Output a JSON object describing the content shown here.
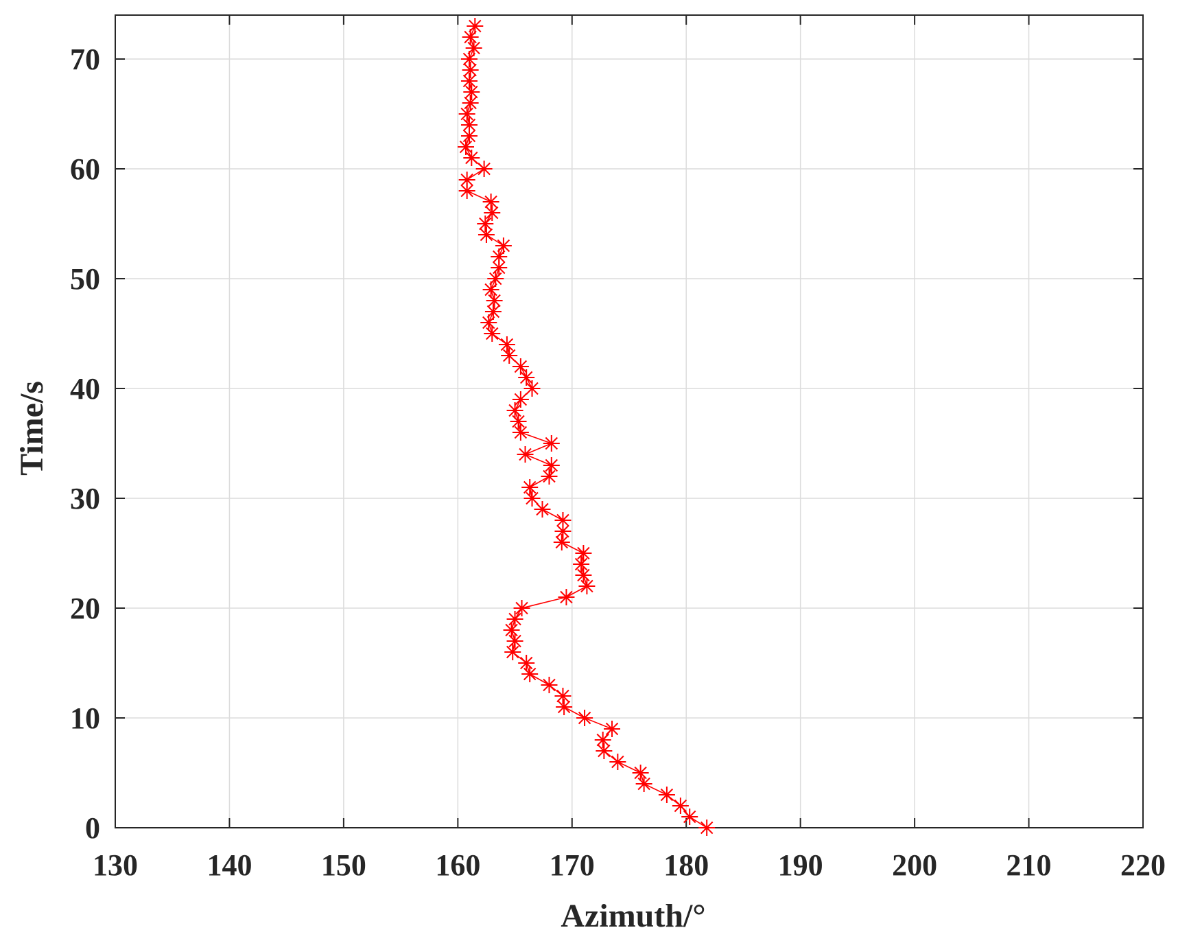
{
  "chart_data": {
    "type": "line",
    "title": "",
    "xlabel": "Azimuth/°",
    "ylabel": "Time/s",
    "xlim": [
      130,
      220
    ],
    "ylim": [
      0,
      74
    ],
    "xticks": [
      130,
      140,
      150,
      160,
      170,
      180,
      190,
      200,
      210,
      220
    ],
    "yticks": [
      0,
      10,
      20,
      30,
      40,
      50,
      60,
      70
    ],
    "x_tick_labels": [
      "130",
      "140",
      "150",
      "160",
      "170",
      "180",
      "190",
      "200",
      "210",
      "220"
    ],
    "y_tick_labels": [
      "0",
      "10",
      "20",
      "30",
      "40",
      "50",
      "60",
      "70"
    ],
    "grid": true,
    "legend": "none",
    "series": [
      {
        "color": "#ff0000",
        "marker": "asterisk",
        "x": [
          181.8,
          180.3,
          179.5,
          178.3,
          176.3,
          176,
          174,
          172.8,
          172.7,
          173.5,
          171.1,
          169.3,
          169.2,
          168,
          166.3,
          166,
          164.8,
          165,
          164.7,
          165,
          165.6,
          169.5,
          171.3,
          171,
          170.8,
          171,
          169.1,
          169.2,
          169.2,
          167.4,
          166.5,
          166.3,
          168,
          168.2,
          165.9,
          168.2,
          165.5,
          165.3,
          165,
          165.5,
          166.5,
          166,
          165.5,
          164.5,
          164.3,
          163,
          162.7,
          163.1,
          163.2,
          162.9,
          163.3,
          163.6,
          163.6,
          164,
          162.5,
          162.4,
          163,
          162.9,
          160.8,
          160.8,
          162.3,
          161.2,
          160.7,
          161,
          161,
          160.8,
          161.1,
          161.2,
          161,
          161.1,
          161,
          161.4,
          161.1,
          161.5
        ],
        "y": [
          0,
          1,
          2,
          3,
          4,
          5,
          6,
          7,
          8,
          9,
          10,
          11,
          12,
          13,
          14,
          15,
          16,
          17,
          18,
          19,
          20,
          21,
          22,
          23,
          24,
          25,
          26,
          27,
          28,
          29,
          30,
          31,
          32,
          33,
          34,
          35,
          36,
          37,
          38,
          39,
          40,
          41,
          42,
          43,
          44,
          45,
          46,
          47,
          48,
          49,
          50,
          51,
          52,
          53,
          54,
          55,
          56,
          57,
          58,
          59,
          60,
          61,
          62,
          63,
          64,
          65,
          66,
          67,
          68,
          69,
          70,
          71,
          72,
          73
        ]
      }
    ]
  }
}
